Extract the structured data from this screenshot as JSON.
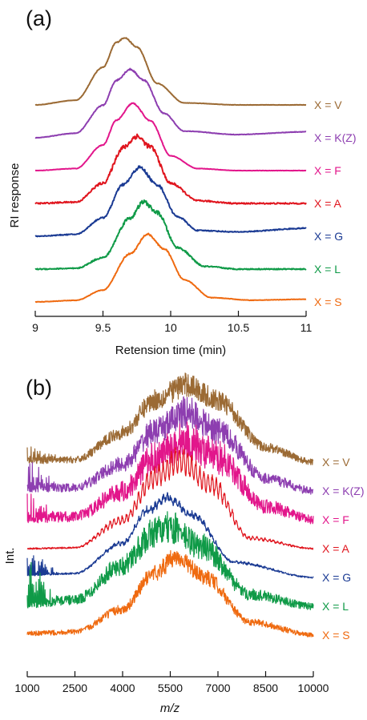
{
  "chart_data": [
    {
      "panel": "(a)",
      "type": "line",
      "xlabel": "Retension time (min)",
      "ylabel": "RI response",
      "xlim": [
        9,
        11
      ],
      "xticks": [
        "9",
        "9.5",
        "10",
        "10.5",
        "11"
      ],
      "grid": false,
      "series": [
        {
          "name": "X = V",
          "color": "#9b6a34",
          "peak_x": 9.66,
          "width": 0.16,
          "offset": 0.0,
          "noise": 0.002,
          "baseline_rise": 0.0,
          "ripple": 0.0,
          "x": [
            9.0,
            9.3,
            9.5,
            9.6,
            9.66,
            9.75,
            9.9,
            10.1,
            10.5,
            11.0
          ],
          "y": [
            0.0,
            0.07,
            0.56,
            0.93,
            1.0,
            0.86,
            0.32,
            0.03,
            0.0,
            0.0
          ]
        },
        {
          "name": "X = K(Z)",
          "color": "#8d3eb0",
          "peak_x": 9.7,
          "width": 0.165,
          "offset": 1.0,
          "noise": 0.003,
          "baseline_rise": 0.05,
          "ripple": 0.0,
          "x": [
            9.0,
            9.3,
            9.5,
            9.6,
            9.7,
            9.8,
            9.95,
            10.1,
            10.5,
            11.0
          ],
          "y": [
            0.0,
            0.06,
            0.47,
            0.84,
            1.0,
            0.84,
            0.34,
            0.07,
            0.01,
            0.04
          ]
        },
        {
          "name": "X = F",
          "color": "#e2168b",
          "peak_x": 9.72,
          "width": 0.16,
          "offset": 2.0,
          "noise": 0.002,
          "baseline_rise": 0.0,
          "ripple": 0.0,
          "x": [
            9.0,
            9.3,
            9.5,
            9.6,
            9.72,
            9.85,
            10.0,
            10.2,
            10.5,
            11.0
          ],
          "y": [
            0.0,
            0.03,
            0.38,
            0.75,
            1.0,
            0.74,
            0.22,
            0.03,
            0.0,
            0.0
          ]
        },
        {
          "name": "X = A",
          "color": "#e0151e",
          "peak_x": 9.75,
          "width": 0.16,
          "offset": 3.0,
          "noise": 0.01,
          "baseline_rise": 0.0,
          "ripple": 0.0,
          "x": [
            9.0,
            9.3,
            9.5,
            9.65,
            9.75,
            9.85,
            10.0,
            10.2,
            10.5,
            11.0
          ],
          "y": [
            0.0,
            0.02,
            0.3,
            0.83,
            1.0,
            0.84,
            0.3,
            0.04,
            0.0,
            0.0
          ]
        },
        {
          "name": "X = G",
          "color": "#1a3a93",
          "peak_x": 9.77,
          "width": 0.16,
          "offset": 4.0,
          "noise": 0.006,
          "baseline_rise": 0.06,
          "ripple": 0.0,
          "x": [
            9.0,
            9.3,
            9.5,
            9.65,
            9.77,
            9.9,
            10.05,
            10.2,
            10.5,
            11.0
          ],
          "y": [
            0.0,
            0.02,
            0.26,
            0.75,
            1.0,
            0.74,
            0.26,
            0.05,
            0.02,
            0.06
          ]
        },
        {
          "name": "X = L",
          "color": "#0f9a47",
          "peak_x": 9.8,
          "width": 0.16,
          "offset": 5.0,
          "noise": 0.008,
          "baseline_rise": 0.0,
          "ripple": 0.0,
          "x": [
            9.0,
            9.3,
            9.5,
            9.7,
            9.8,
            9.9,
            10.05,
            10.25,
            10.5,
            11.0
          ],
          "y": [
            0.0,
            0.01,
            0.17,
            0.76,
            1.0,
            0.84,
            0.32,
            0.04,
            0.0,
            0.0
          ]
        },
        {
          "name": "X = S",
          "color": "#ef6a10",
          "peak_x": 9.83,
          "width": 0.165,
          "offset": 6.0,
          "noise": 0.003,
          "baseline_rise": 0.02,
          "ripple": 0.0,
          "x": [
            9.0,
            9.3,
            9.5,
            9.7,
            9.83,
            9.95,
            10.1,
            10.3,
            10.6,
            11.0
          ],
          "y": [
            0.0,
            0.02,
            0.17,
            0.71,
            1.0,
            0.78,
            0.32,
            0.05,
            0.01,
            0.02
          ]
        }
      ]
    },
    {
      "panel": "(b)",
      "type": "line",
      "xlabel": "m/z",
      "ylabel": "Int.",
      "xlim": [
        1000,
        10000
      ],
      "xticks": [
        "1000",
        "2500",
        "4000",
        "5500",
        "7000",
        "8500",
        "10000"
      ],
      "grid": false,
      "series": [
        {
          "name": "X = V",
          "color": "#9b6a34",
          "peak_x": 6000,
          "width": 1400,
          "offset": 0.0,
          "noise": 0.04,
          "baseline_rise": 0.0,
          "ripple": 0.03,
          "low_mass_spikes": 0.2,
          "x": [
            1000,
            2500,
            4000,
            5000,
            6000,
            7000,
            8500,
            10000
          ],
          "y": [
            0.02,
            0.03,
            0.38,
            0.8,
            1.0,
            0.79,
            0.19,
            0.0
          ]
        },
        {
          "name": "X = K(Z)",
          "color": "#8d3eb0",
          "peak_x": 6000,
          "width": 1350,
          "offset": 1.0,
          "noise": 0.05,
          "baseline_rise": 0.0,
          "ripple": 0.06,
          "low_mass_spikes": 0.45,
          "x": [
            1000,
            2500,
            4000,
            5000,
            6000,
            7000,
            8500,
            10000
          ],
          "y": [
            0.04,
            0.04,
            0.34,
            0.76,
            1.0,
            0.77,
            0.16,
            0.0
          ]
        },
        {
          "name": "X = F",
          "color": "#e2168b",
          "peak_x": 6000,
          "width": 1350,
          "offset": 2.0,
          "noise": 0.06,
          "baseline_rise": 0.0,
          "ripple": 0.09,
          "low_mass_spikes": 0.3,
          "x": [
            1000,
            2500,
            4000,
            5000,
            6000,
            7000,
            8500,
            10000
          ],
          "y": [
            0.02,
            0.04,
            0.36,
            0.78,
            1.0,
            0.78,
            0.17,
            0.0
          ]
        },
        {
          "name": "X = A",
          "color": "#e0151e",
          "peak_x": 5800,
          "width": 1200,
          "offset": 3.0,
          "noise": 0.01,
          "baseline_rise": 0.0,
          "ripple": 0.5,
          "low_mass_spikes": 0.0,
          "x": [
            1000,
            2500,
            4000,
            5000,
            5800,
            6800,
            8000,
            10000
          ],
          "y": [
            0.0,
            0.01,
            0.32,
            0.8,
            1.0,
            0.72,
            0.12,
            0.0
          ]
        },
        {
          "name": "X = G",
          "color": "#1a3a93",
          "peak_x": 5400,
          "width": 1250,
          "offset": 4.0,
          "noise": 0.01,
          "baseline_rise": 0.0,
          "ripple": 0.12,
          "low_mass_spikes": 0.35,
          "x": [
            1000,
            2500,
            4000,
            4800,
            5400,
            6200,
            7500,
            10000
          ],
          "y": [
            0.03,
            0.05,
            0.43,
            0.84,
            1.0,
            0.78,
            0.19,
            0.0
          ]
        },
        {
          "name": "X = L",
          "color": "#0f9a47",
          "peak_x": 5500,
          "width": 1350,
          "offset": 5.0,
          "noise": 0.05,
          "baseline_rise": 0.0,
          "ripple": 0.06,
          "low_mass_spikes": 0.6,
          "x": [
            1000,
            2500,
            4000,
            5000,
            5500,
            6500,
            8000,
            10000
          ],
          "y": [
            0.03,
            0.08,
            0.52,
            0.94,
            1.0,
            0.76,
            0.15,
            0.0
          ]
        },
        {
          "name": "X = S",
          "color": "#ef6a10",
          "peak_x": 5700,
          "width": 1250,
          "offset": 6.0,
          "noise": 0.03,
          "baseline_rise": 0.0,
          "ripple": 0.04,
          "low_mass_spikes": 0.0,
          "x": [
            1000,
            2500,
            4000,
            5000,
            5700,
            6600,
            8000,
            10000
          ],
          "y": [
            0.02,
            0.04,
            0.33,
            0.8,
            1.0,
            0.74,
            0.17,
            0.0
          ]
        }
      ]
    }
  ]
}
